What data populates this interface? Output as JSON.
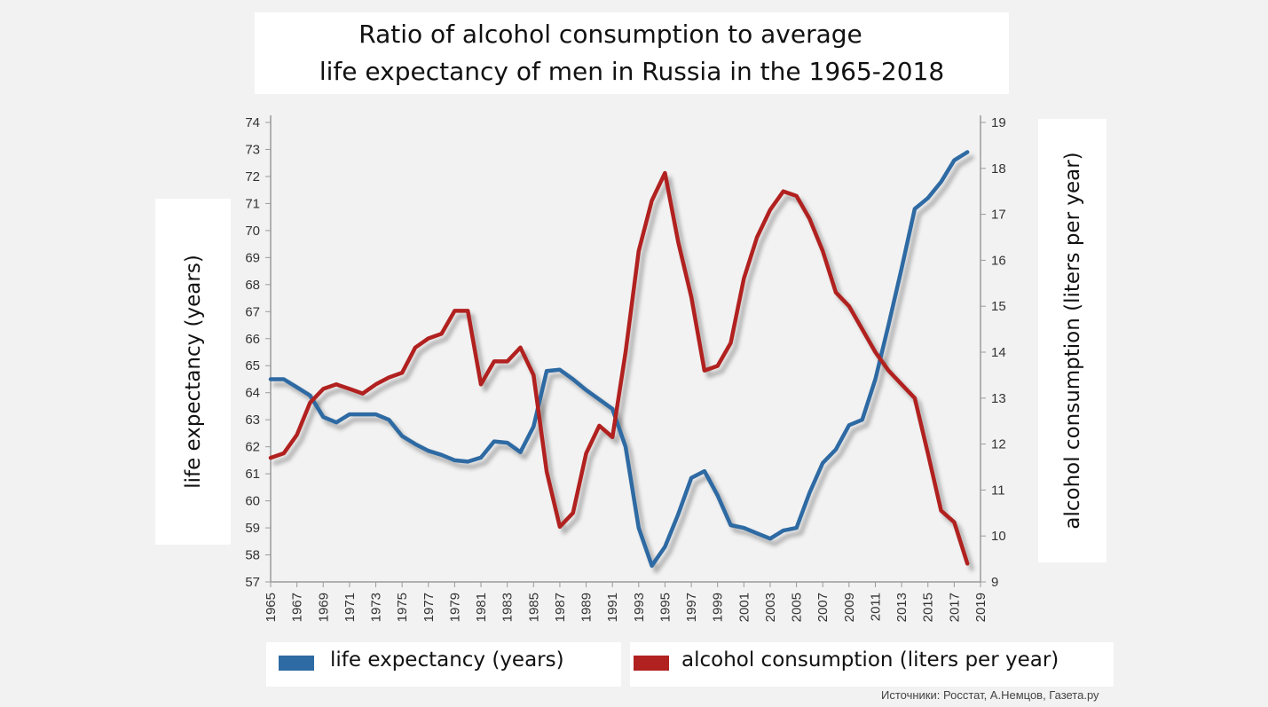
{
  "chart_data": {
    "type": "line",
    "title": "Ratio of alcohol consumption to average life expectancy of men in Russia in the 1965-2018",
    "title_lines": [
      "Ratio of alcohol consumption to average",
      "life expectancy of men in Russia in the 1965-2018"
    ],
    "ylabel_left": "life expectancy (years)",
    "ylabel_right": "alcohol consumption (liters per year)",
    "xlim": [
      1965,
      2019
    ],
    "ylim_left": [
      57,
      74
    ],
    "ylim_right": [
      9,
      19
    ],
    "x_ticks": [
      "1965",
      "1967",
      "1969",
      "1971",
      "1973",
      "1975",
      "1977",
      "1979",
      "1981",
      "1983",
      "1985",
      "1987",
      "1989",
      "1991",
      "1993",
      "1995",
      "1997",
      "1999",
      "2001",
      "2003",
      "2005",
      "2007",
      "2009",
      "2011",
      "2013",
      "2015",
      "2017",
      "2019"
    ],
    "y_ticks_left": [
      "57",
      "58",
      "59",
      "60",
      "61",
      "62",
      "63",
      "64",
      "65",
      "66",
      "67",
      "68",
      "69",
      "70",
      "71",
      "72",
      "73",
      "74"
    ],
    "y_ticks_right": [
      "9",
      "10",
      "11",
      "12",
      "13",
      "14",
      "15",
      "16",
      "17",
      "18",
      "19"
    ],
    "grid": false,
    "legend": "bottom",
    "series": [
      {
        "name": "life expectancy (years)",
        "axis": "left",
        "color": "#2e6aa3",
        "x": [
          1965,
          1966,
          1967,
          1968,
          1969,
          1970,
          1971,
          1972,
          1973,
          1974,
          1975,
          1976,
          1977,
          1978,
          1979,
          1980,
          1981,
          1982,
          1983,
          1984,
          1985,
          1986,
          1987,
          1988,
          1989,
          1990,
          1991,
          1992,
          1993,
          1994,
          1995,
          1996,
          1997,
          1998,
          1999,
          2000,
          2001,
          2002,
          2003,
          2004,
          2005,
          2006,
          2007,
          2008,
          2009,
          2010,
          2011,
          2012,
          2013,
          2014,
          2015,
          2016,
          2017,
          2018
        ],
        "values": [
          64.5,
          64.5,
          64.2,
          63.9,
          63.1,
          62.9,
          63.2,
          63.2,
          63.2,
          63.0,
          62.4,
          62.1,
          61.85,
          61.7,
          61.5,
          61.45,
          61.6,
          62.2,
          62.15,
          61.8,
          62.75,
          64.8,
          64.85,
          64.5,
          64.1,
          63.75,
          63.4,
          62.0,
          59.0,
          57.6,
          58.3,
          59.5,
          60.85,
          61.1,
          60.2,
          59.1,
          59.0,
          58.8,
          58.6,
          58.9,
          59.0,
          60.3,
          61.4,
          61.9,
          62.8,
          63.0,
          64.5,
          66.5,
          68.6,
          70.8,
          71.2,
          71.8,
          72.6,
          72.9
        ]
      },
      {
        "name": "alcohol consumption (liters per year)",
        "axis": "right",
        "color": "#b1211f",
        "x": [
          1965,
          1966,
          1967,
          1968,
          1969,
          1970,
          1971,
          1972,
          1973,
          1974,
          1975,
          1976,
          1977,
          1978,
          1979,
          1980,
          1981,
          1982,
          1983,
          1984,
          1985,
          1986,
          1987,
          1988,
          1989,
          1990,
          1991,
          1992,
          1993,
          1994,
          1995,
          1996,
          1997,
          1998,
          1999,
          2000,
          2001,
          2002,
          2003,
          2004,
          2005,
          2006,
          2007,
          2008,
          2009,
          2010,
          2011,
          2012,
          2013,
          2014,
          2015,
          2016,
          2017,
          2018
        ],
        "values": [
          11.7,
          11.8,
          12.2,
          12.9,
          13.2,
          13.3,
          13.2,
          13.1,
          13.3,
          13.45,
          13.55,
          14.1,
          14.3,
          14.4,
          14.9,
          14.9,
          13.3,
          13.8,
          13.8,
          14.1,
          13.5,
          11.4,
          10.2,
          10.5,
          11.8,
          12.4,
          12.15,
          14.0,
          16.2,
          17.3,
          17.9,
          16.4,
          15.2,
          13.6,
          13.7,
          14.2,
          15.6,
          16.5,
          17.1,
          17.5,
          17.4,
          16.9,
          16.2,
          15.3,
          15.0,
          14.5,
          14.0,
          13.6,
          13.3,
          13.0,
          11.8,
          10.55,
          10.3,
          9.4
        ]
      }
    ]
  },
  "legend": {
    "life_label": "life expectancy (years)",
    "life_color": "#2e6aa3",
    "alcohol_label": "alcohol consumption (liters per year)",
    "alcohol_color": "#b1211f"
  },
  "source": "Источники: Росстат, А.Немцов, Газета.ру"
}
